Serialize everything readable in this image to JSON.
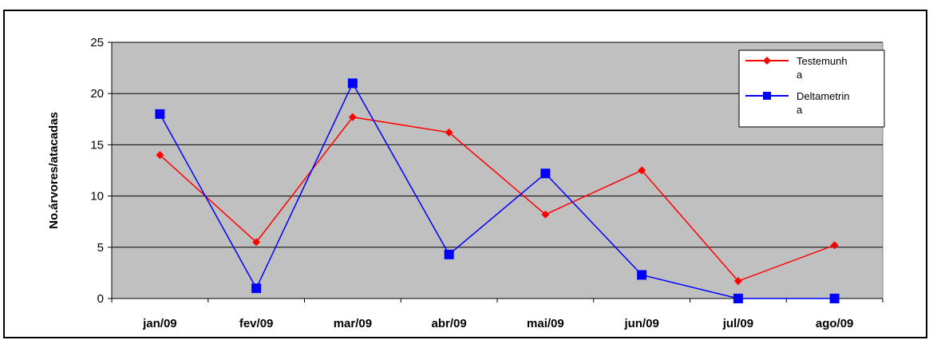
{
  "chart_data": {
    "type": "line",
    "title": "",
    "xlabel": "",
    "ylabel": "No.árvores/atacadas",
    "categories": [
      "jan/09",
      "fev/09",
      "mar/09",
      "abr/09",
      "mai/09",
      "jun/09",
      "jul/09",
      "ago/09"
    ],
    "ylim": [
      0,
      25
    ],
    "yticks": [
      0,
      5,
      10,
      15,
      20,
      25
    ],
    "grid": true,
    "legend_position": "top-right",
    "plot_background": "#c0c0c0",
    "series": [
      {
        "name": "Testemunha",
        "legend_lines": [
          "Testemunh",
          "a"
        ],
        "color": "#ff0000",
        "marker": "diamond",
        "values": [
          14,
          5.5,
          17.7,
          16.2,
          8.2,
          12.5,
          1.7,
          5.2
        ]
      },
      {
        "name": "Deltametrina",
        "legend_lines": [
          "Deltametrin",
          "a"
        ],
        "color": "#0000ff",
        "marker": "square",
        "values": [
          18,
          1,
          21,
          4.3,
          12.2,
          2.3,
          0,
          0
        ]
      }
    ]
  }
}
